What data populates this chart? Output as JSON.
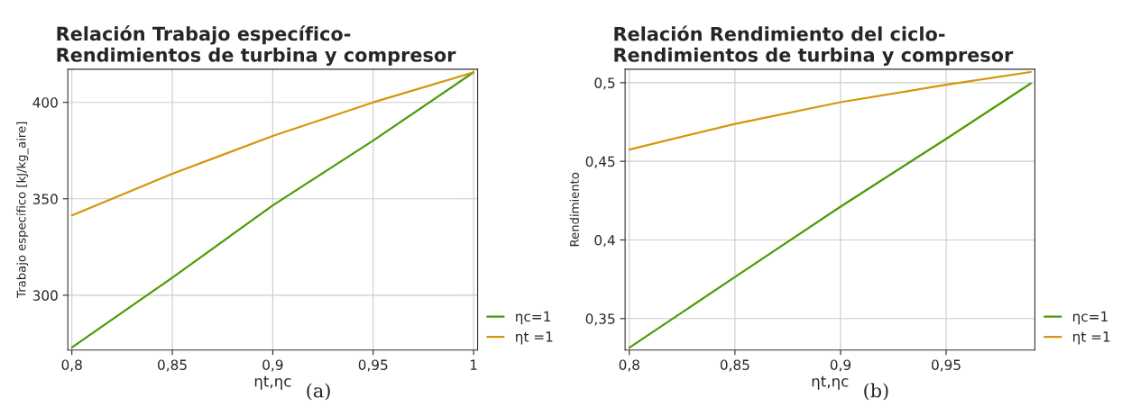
{
  "chart_data": [
    {
      "type": "line",
      "title": "Relación Trabajo específico-\nRendimientos de turbina y compresor",
      "xlabel": "ηt,ηc",
      "ylabel": "Trabajo específico [kJ/kg_aire]",
      "annotations": [
        "(a)"
      ],
      "xlim": [
        0.798,
        1.002
      ],
      "xticks": [
        {
          "value": 0.8,
          "label": "0,8"
        },
        {
          "value": 0.85,
          "label": "0,85"
        },
        {
          "value": 0.9,
          "label": "0,9"
        },
        {
          "value": 0.95,
          "label": "0,95"
        },
        {
          "value": 1,
          "label": "1"
        }
      ],
      "ylim": [
        271.6,
        417.2
      ],
      "yticks": [
        300,
        350,
        400
      ],
      "grid": true,
      "legend": "bottom right",
      "series": [
        {
          "name": "ηc=1",
          "color": "#4e9a06",
          "x": [
            0.8,
            0.85,
            0.9,
            0.95,
            1.0
          ],
          "values": [
            272.9,
            309.1,
            346.6,
            380.2,
            415.6
          ]
        },
        {
          "name": "ηt =1",
          "color": "#d4960a",
          "x": [
            0.8,
            0.85,
            0.9,
            0.95,
            1.0
          ],
          "values": [
            341.4,
            363.0,
            382.6,
            400.0,
            415.6
          ]
        }
      ]
    },
    {
      "type": "line",
      "title": "Relación Rendimiento del ciclo-\nRendimientos de turbina y compresor",
      "xlabel": "ηt,ηc",
      "ylabel": "Rendimiento",
      "annotations": [
        "(b)"
      ],
      "xlim": [
        0.798,
        0.992
      ],
      "xticks": [
        {
          "value": 0.8,
          "label": "0,8"
        },
        {
          "value": 0.85,
          "label": "0,85"
        },
        {
          "value": 0.9,
          "label": "0,9"
        },
        {
          "value": 0.95,
          "label": "0,95"
        }
      ],
      "ylim": [
        0.33,
        0.5086
      ],
      "yticks": [
        {
          "value": 0.35,
          "label": "0,35"
        },
        {
          "value": 0.4,
          "label": "0,4"
        },
        {
          "value": 0.45,
          "label": "0,45"
        },
        {
          "value": 0.5,
          "label": "0,5"
        }
      ],
      "grid": true,
      "legend": "bottom right",
      "series": [
        {
          "name": "ηc=1",
          "color": "#4e9a06",
          "x": [
            0.8,
            0.85,
            0.9,
            0.95,
            0.99
          ],
          "values": [
            0.3315,
            0.3764,
            0.4212,
            0.4643,
            0.4995
          ]
        },
        {
          "name": "ηt =1",
          "color": "#d4960a",
          "x": [
            0.8,
            0.85,
            0.9,
            0.95,
            0.99
          ],
          "values": [
            0.4575,
            0.4738,
            0.4876,
            0.4987,
            0.5068
          ]
        }
      ]
    }
  ]
}
